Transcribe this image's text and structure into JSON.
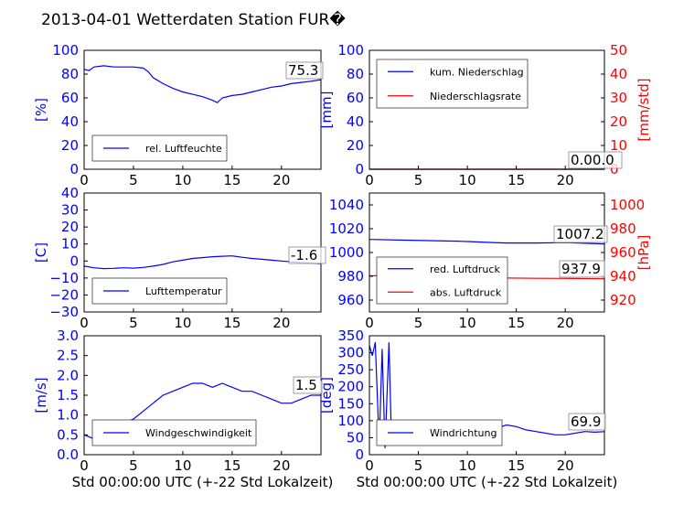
{
  "title": "2013-04-01 Wetterdaten Station FUR�",
  "colors": {
    "blue": "#0000ff",
    "red": "#ff0000",
    "dark_red": "#8b0000"
  },
  "chart_data": [
    {
      "type": "line",
      "ylabel": "[%]",
      "xlim": [
        0,
        24
      ],
      "ylim": [
        0,
        100
      ],
      "xticks": [
        "0",
        "5",
        "10",
        "15",
        "20"
      ],
      "yticks": [
        "0",
        "20",
        "40",
        "60",
        "80",
        "100"
      ],
      "current_label": "75.3",
      "legend_loc": "lower-left",
      "series": [
        {
          "name": "rel. Luftfeuchte",
          "color": "#0000ff",
          "x": [
            0,
            0.5,
            1,
            2,
            3,
            4,
            5,
            6,
            6.5,
            7,
            8,
            9,
            10,
            11,
            12,
            13,
            13.5,
            14,
            15,
            16,
            17,
            18,
            19,
            20,
            21,
            22,
            23,
            24
          ],
          "y": [
            84,
            83,
            86,
            87,
            86,
            86,
            86,
            85,
            82,
            77,
            72,
            68,
            65,
            63,
            61,
            58,
            56,
            60,
            62,
            63,
            65,
            67,
            69,
            70,
            72,
            73,
            74,
            75.3
          ]
        }
      ]
    },
    {
      "type": "line",
      "ylabel": "[mm]",
      "y2label": "[mm/std]",
      "xlim": [
        0,
        24
      ],
      "ylim": [
        0,
        100
      ],
      "y2lim": [
        0,
        50
      ],
      "xticks": [
        "0",
        "5",
        "10",
        "15",
        "20"
      ],
      "yticks": [
        "0",
        "20",
        "40",
        "60",
        "80",
        "100"
      ],
      "y2ticks": [
        "0",
        "10",
        "20",
        "30",
        "40",
        "50"
      ],
      "current_label": "0.00.0",
      "legend_loc": "upper-left",
      "series": [
        {
          "name": "kum. Niederschlag",
          "color": "#0000ff",
          "x": [
            0,
            24
          ],
          "y": [
            0,
            0
          ]
        },
        {
          "name": "Niederschlagsrate",
          "color": "#ff0000",
          "axis": "right",
          "x": [
            0,
            24
          ],
          "y": [
            0,
            0
          ]
        }
      ]
    },
    {
      "type": "line",
      "ylabel": "[C]",
      "xlim": [
        0,
        24
      ],
      "ylim": [
        -30,
        40
      ],
      "xticks": [
        "0",
        "5",
        "10",
        "15",
        "20"
      ],
      "yticks": [
        "−30",
        "−20",
        "−10",
        "0",
        "10",
        "20",
        "30",
        "40"
      ],
      "current_label": "-1.6",
      "legend_loc": "lower-left",
      "series": [
        {
          "name": "Lufttemperatur",
          "color": "#0000ff",
          "x": [
            0,
            1,
            2,
            3,
            4,
            5,
            6,
            7,
            8,
            9,
            10,
            11,
            12,
            13,
            14,
            15,
            16,
            17,
            18,
            19,
            20,
            21,
            22,
            23,
            24
          ],
          "y": [
            -3,
            -4,
            -4.5,
            -4.3,
            -4,
            -4.2,
            -3.8,
            -3,
            -2,
            -0.5,
            0.5,
            1.5,
            2,
            2.5,
            2.8,
            3,
            2.2,
            1.5,
            1,
            0.5,
            0,
            -0.5,
            -1,
            -1.3,
            -1.6
          ]
        }
      ]
    },
    {
      "type": "line",
      "ylabel": "",
      "y2label": "[hPa]",
      "xlim": [
        0,
        24
      ],
      "ylim": [
        950,
        1050
      ],
      "y2lim": [
        910,
        1010
      ],
      "xticks": [
        "0",
        "5",
        "10",
        "15",
        "20"
      ],
      "yticks": [
        "960",
        "980",
        "1000",
        "1020",
        "1040"
      ],
      "y2ticks": [
        "920",
        "940",
        "960",
        "980",
        "1000"
      ],
      "current_labels": [
        "1007.2",
        "937.9"
      ],
      "legend_loc": "lower-left",
      "series": [
        {
          "name": "red. Luftdruck",
          "color": "#0000ff",
          "x": [
            0,
            3,
            6,
            9,
            12,
            14,
            17,
            20,
            24
          ],
          "y": [
            1011,
            1010.5,
            1010,
            1009.5,
            1008.5,
            1008,
            1008,
            1008.3,
            1007.2
          ]
        },
        {
          "name": "abs. Luftdruck",
          "color": "#ff0000",
          "axis": "right",
          "x": [
            0,
            3,
            6,
            9,
            12,
            14,
            17,
            20,
            24
          ],
          "y": [
            940.5,
            940.2,
            939.8,
            939.5,
            939,
            938.5,
            938.3,
            938.2,
            937.9
          ]
        }
      ]
    },
    {
      "type": "line",
      "ylabel": "[m/s]",
      "xlabel": "Std 00:00:00 UTC (+-22 Std Lokalzeit)",
      "xlim": [
        0,
        24
      ],
      "ylim": [
        0,
        3
      ],
      "xticks": [
        "0",
        "5",
        "10",
        "15",
        "20"
      ],
      "yticks": [
        "0.0",
        "0.5",
        "1.0",
        "1.5",
        "2.0",
        "2.5",
        "3.0"
      ],
      "current_label": "1.5",
      "legend_loc": "lower-left",
      "series": [
        {
          "name": "Windgeschwindigkeit",
          "color": "#0000ff",
          "x": [
            0,
            1,
            2,
            3,
            4,
            5,
            6,
            7,
            8,
            9,
            10,
            11,
            12,
            13,
            14,
            15,
            16,
            17,
            18,
            19,
            20,
            21,
            22,
            23,
            24
          ],
          "y": [
            0.5,
            0.4,
            0.3,
            0.6,
            0.8,
            0.9,
            1.1,
            1.3,
            1.5,
            1.6,
            1.7,
            1.8,
            1.8,
            1.7,
            1.8,
            1.7,
            1.6,
            1.6,
            1.5,
            1.4,
            1.3,
            1.3,
            1.4,
            1.5,
            1.5
          ]
        }
      ]
    },
    {
      "type": "line",
      "ylabel": "[deg]",
      "xlabel": "Std 00:00:00 UTC (+-22 Std Lokalzeit)",
      "xlim": [
        0,
        24
      ],
      "ylim": [
        0,
        360
      ],
      "xticks": [
        "0",
        "5",
        "10",
        "15",
        "20"
      ],
      "yticks": [
        "0",
        "50",
        "100",
        "150",
        "200",
        "250",
        "300",
        "350"
      ],
      "current_label": "69.9",
      "legend_loc": "lower-left",
      "series": [
        {
          "name": "Windrichtung",
          "color": "#0000ff",
          "x": [
            0,
            0.3,
            0.6,
            1.0,
            1.3,
            1.6,
            2.0,
            2.2,
            2.6,
            3,
            4,
            5,
            6,
            7,
            8,
            9,
            10,
            11,
            12,
            13,
            14,
            15,
            16,
            17,
            18,
            19,
            20,
            21,
            22,
            23,
            24
          ],
          "y": [
            330,
            300,
            340,
            30,
            320,
            20,
            340,
            100,
            60,
            80,
            70,
            60,
            70,
            80,
            75,
            80,
            85,
            90,
            95,
            80,
            90,
            85,
            75,
            70,
            65,
            60,
            60,
            65,
            70,
            68,
            69.9
          ]
        }
      ]
    }
  ]
}
